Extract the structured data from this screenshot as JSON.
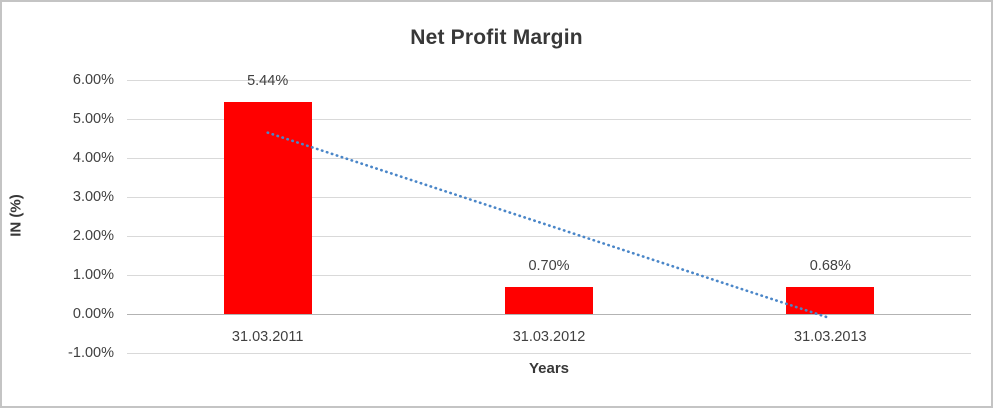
{
  "frame": {
    "background": "#ffffff",
    "border_color": "#c4c4c4"
  },
  "chart_data": {
    "type": "bar",
    "title": "Net Profit Margin",
    "xlabel": "Years",
    "ylabel": "IN (%)",
    "categories": [
      "31.03.2011",
      "31.03.2012",
      "31.03.2013"
    ],
    "series": [
      {
        "name": "Net Profit Margin",
        "values": [
          5.44,
          0.7,
          0.68
        ],
        "color": "#ff0000"
      }
    ],
    "data_labels": [
      "5.44%",
      "0.70%",
      "0.68%"
    ],
    "ylim": [
      -1,
      6
    ],
    "yticks": [
      {
        "value": 6,
        "label": "6.00%"
      },
      {
        "value": 5,
        "label": "5.00%"
      },
      {
        "value": 4,
        "label": "4.00%"
      },
      {
        "value": 3,
        "label": "3.00%"
      },
      {
        "value": 2,
        "label": "2.00%"
      },
      {
        "value": 1,
        "label": "1.00%"
      },
      {
        "value": 0,
        "label": "0.00%"
      },
      {
        "value": -1,
        "label": "-1.00%"
      }
    ],
    "grid": true,
    "gridline_color": "#d9d9d9",
    "axis_line_color": "#b3b3b3",
    "legend": "none",
    "trendline": {
      "type": "linear",
      "style": "dotted",
      "color": "#4a86c8",
      "start_value": 4.65,
      "end_value": -0.11
    },
    "text_color": "#404040"
  }
}
